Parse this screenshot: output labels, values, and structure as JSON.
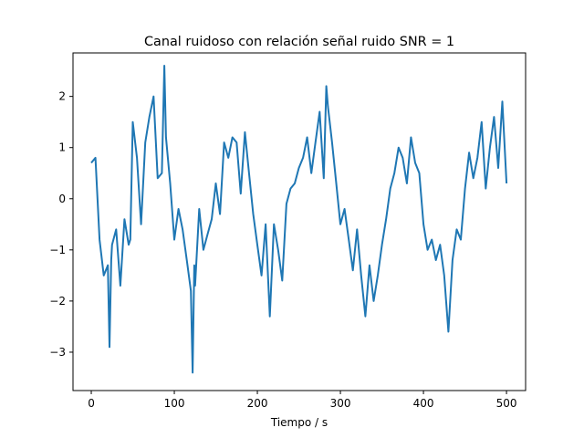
{
  "chart_data": {
    "type": "line",
    "title": "Canal ruidoso con relación señal ruido SNR = 1",
    "xlabel": "Tiempo / s",
    "ylabel": "",
    "xlim": [
      -22,
      523
    ],
    "ylim": [
      -3.75,
      2.85
    ],
    "xticks": [
      0,
      100,
      200,
      300,
      400,
      500
    ],
    "yticks": [
      -3,
      -2,
      -1,
      0,
      1,
      2
    ],
    "xtick_labels": [
      "0",
      "100",
      "200",
      "300",
      "400",
      "500"
    ],
    "ytick_labels": [
      "−3",
      "−2",
      "−1",
      "0",
      "1",
      "2"
    ],
    "grid": false,
    "series": [
      {
        "name": "",
        "color": "#1f77b4",
        "x": [
          0,
          5,
          10,
          15,
          20,
          22,
          24,
          25,
          30,
          35,
          40,
          45,
          47,
          50,
          55,
          60,
          65,
          70,
          75,
          80,
          85,
          88,
          90,
          95,
          100,
          105,
          110,
          115,
          120,
          122,
          124,
          125,
          130,
          135,
          140,
          145,
          150,
          155,
          160,
          165,
          170,
          175,
          180,
          185,
          190,
          195,
          200,
          205,
          210,
          215,
          220,
          225,
          230,
          235,
          240,
          245,
          250,
          255,
          260,
          265,
          270,
          275,
          280,
          283,
          285,
          290,
          295,
          300,
          305,
          310,
          315,
          320,
          325,
          330,
          335,
          340,
          345,
          350,
          355,
          360,
          365,
          370,
          375,
          380,
          385,
          390,
          395,
          400,
          405,
          410,
          415,
          420,
          425,
          430,
          435,
          440,
          445,
          450,
          455,
          460,
          465,
          470,
          475,
          480,
          485,
          490,
          495,
          500
        ],
        "values": [
          0.7,
          0.8,
          -0.8,
          -1.5,
          -1.3,
          -2.9,
          -1.2,
          -0.9,
          -0.6,
          -1.7,
          -0.4,
          -0.9,
          -0.8,
          1.5,
          0.8,
          -0.5,
          1.1,
          1.6,
          2.0,
          0.4,
          0.5,
          2.6,
          1.2,
          0.3,
          -0.8,
          -0.2,
          -0.6,
          -1.2,
          -1.8,
          -3.4,
          -1.3,
          -1.7,
          -0.2,
          -1.0,
          -0.7,
          -0.4,
          0.3,
          -0.3,
          1.1,
          0.8,
          1.2,
          1.1,
          0.1,
          1.3,
          0.5,
          -0.3,
          -0.9,
          -1.5,
          -0.5,
          -2.3,
          -0.5,
          -1.0,
          -1.6,
          -0.1,
          0.2,
          0.3,
          0.6,
          0.8,
          1.2,
          0.5,
          1.1,
          1.7,
          0.4,
          2.2,
          1.8,
          1.1,
          0.3,
          -0.5,
          -0.2,
          -0.8,
          -1.4,
          -0.6,
          -1.5,
          -2.3,
          -1.3,
          -2.0,
          -1.5,
          -0.9,
          -0.4,
          0.2,
          0.5,
          1.0,
          0.8,
          0.3,
          1.2,
          0.7,
          0.5,
          -0.5,
          -1.0,
          -0.8,
          -1.2,
          -0.9,
          -1.5,
          -2.6,
          -1.2,
          -0.6,
          -0.8,
          0.2,
          0.9,
          0.4,
          0.8,
          1.5,
          0.2,
          1.0,
          1.6,
          0.6,
          1.9,
          0.3
        ]
      }
    ]
  }
}
